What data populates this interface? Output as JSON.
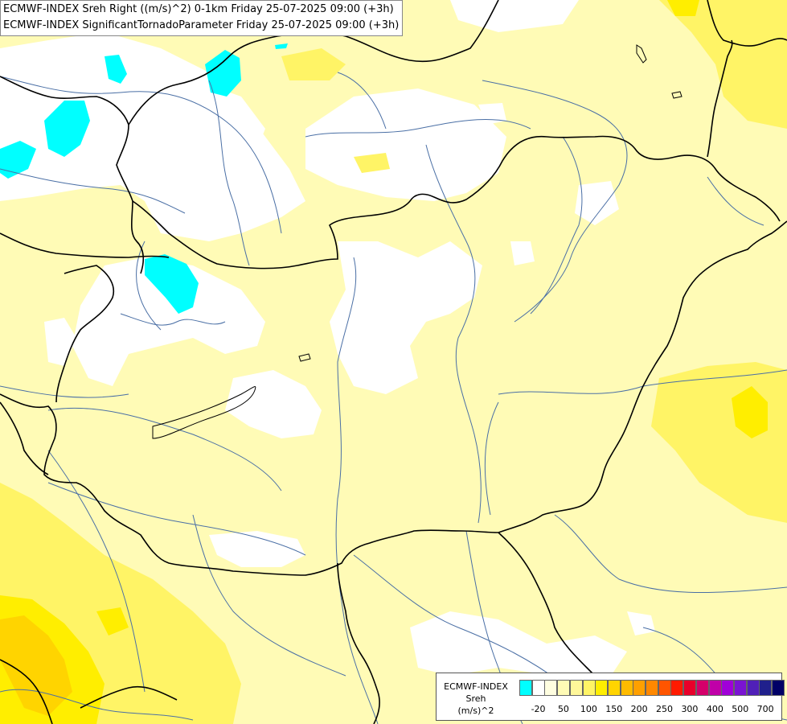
{
  "titles": {
    "line1": "ECMWF-INDEX Sreh Right ((m/s)^2) 0-1km Friday 25-07-2025 09:00 (+3h)",
    "line2": "ECMWF-INDEX SignificantTornadoParameter Friday 25-07-2025 09:00 (+3h)"
  },
  "legend": {
    "title": "ECMWF-INDEX",
    "field": "Sreh",
    "unit": "(m/s)^2",
    "colors": [
      "#00ffff",
      "#ffffff",
      "#fffee0",
      "#fffbb6",
      "#fff79a",
      "#fff466",
      "#ffee00",
      "#ffd400",
      "#ffbb00",
      "#ffa000",
      "#ff8800",
      "#ff5500",
      "#ff1a00",
      "#e8002a",
      "#d4006a",
      "#c000a8",
      "#a000d8",
      "#7a14d2",
      "#5020b8",
      "#20208c",
      "#000066"
    ],
    "labels": [
      "-20",
      "50",
      "100",
      "150",
      "200",
      "250",
      "300",
      "400",
      "500",
      "700"
    ]
  },
  "map_colors": {
    "background": "#fffbb6",
    "white": "#ffffff",
    "cyan": "#00ffff",
    "yellow": "#fff466",
    "yellow_strong": "#ffee00",
    "orange": "#ffd400",
    "border": "#000000",
    "river": "#4a6fa5"
  }
}
